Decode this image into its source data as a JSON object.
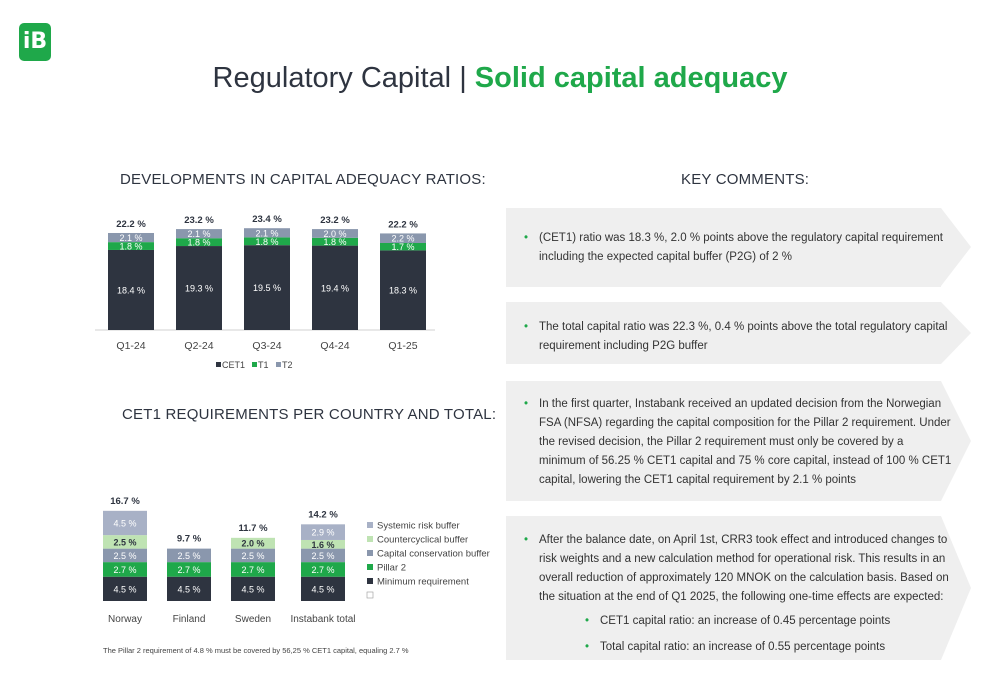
{
  "logo": {
    "text": "iB"
  },
  "title": {
    "part1": "Regulatory Capital",
    "separator": "|",
    "part2": "Solid capital adequacy"
  },
  "sections": {
    "left_top": "DEVELOPMENTS IN CAPITAL ADEQUACY RATIOS:",
    "left_bottom": "CET1 REQUIREMENTS PER COUNTRY AND TOTAL:",
    "right": "KEY COMMENTS:"
  },
  "colors": {
    "cet1": "#2e3440",
    "t1": "#1fa84a",
    "t2": "#8a97ad",
    "systemic": "#a8b1c6",
    "countercyclical": "#bfe3b3",
    "conservation": "#8a97ad",
    "pillar2": "#1fa84a",
    "minimum": "#2e3440",
    "accent": "#1fa84a"
  },
  "chart_data": [
    {
      "type": "bar",
      "stacked": true,
      "categories": [
        "Q1-24",
        "Q2-24",
        "Q3-24",
        "Q4-24",
        "Q1-25"
      ],
      "series": [
        {
          "name": "CET1",
          "values": [
            18.4,
            19.3,
            19.5,
            19.4,
            18.3
          ],
          "labels": [
            "18.4 %",
            "19.3 %",
            "19.5 %",
            "19.4 %",
            "18.3 %"
          ]
        },
        {
          "name": "T1",
          "values": [
            1.8,
            1.8,
            1.8,
            1.8,
            1.7
          ],
          "labels": [
            "1.8 %",
            "1.8 %",
            "1.8 %",
            "1.8 %",
            "1.7 %"
          ]
        },
        {
          "name": "T2",
          "values": [
            2.1,
            2.1,
            2.1,
            2.0,
            2.2
          ],
          "labels": [
            "2.1 %",
            "2.1 %",
            "2.1 %",
            "2.0 %",
            "2.2 %"
          ]
        }
      ],
      "totals": [
        "22.2 %",
        "23.2 %",
        "23.4 %",
        "23.2 %",
        "22.2 %"
      ],
      "legend": {
        "position": "bottom",
        "entries": [
          "CET1",
          "T1",
          "T2"
        ]
      },
      "grid": false
    },
    {
      "type": "bar",
      "stacked": true,
      "categories": [
        "Norway",
        "Finland",
        "Sweden",
        "Instabank total"
      ],
      "series": [
        {
          "name": "Minimum requirement",
          "values": [
            4.5,
            4.5,
            4.5,
            4.5
          ],
          "labels": [
            "4.5 %",
            "4.5 %",
            "4.5 %",
            "4.5 %"
          ]
        },
        {
          "name": "Pillar 2",
          "values": [
            2.7,
            2.7,
            2.7,
            2.7
          ],
          "labels": [
            "2.7 %",
            "2.7 %",
            "2.7 %",
            "2.7 %"
          ]
        },
        {
          "name": "Capital conservation buffer",
          "values": [
            2.5,
            2.5,
            2.5,
            2.5
          ],
          "labels": [
            "2.5 %",
            "2.5 %",
            "2.5 %",
            "2.5 %"
          ]
        },
        {
          "name": "Countercyclical buffer",
          "values": [
            2.5,
            0,
            2.0,
            1.6
          ],
          "labels": [
            "2.5 %",
            "",
            "2.0 %",
            "1.6 %"
          ]
        },
        {
          "name": "Systemic risk buffer",
          "values": [
            4.5,
            0,
            0,
            2.9
          ],
          "labels": [
            "4.5 %",
            "",
            "",
            "2.9 %"
          ]
        }
      ],
      "totals": [
        "16.7 %",
        "9.7 %",
        "11.7 %",
        "14.2 %"
      ],
      "legend": {
        "position": "right",
        "entries": [
          "Systemic risk buffer",
          "Countercyclical buffer",
          "Capital conservation buffer",
          "Pillar 2",
          "Minimum requirement",
          ""
        ]
      },
      "grid": false
    }
  ],
  "note": "The Pillar 2 requirement of 4.8 % must  be covered by 56,25 % CET1 capital, equaling 2.7 %",
  "comments": [
    {
      "lines": [
        "(CET1) ratio was 18.3 %, 2.0 % points above the regulatory capital requirement",
        "including the expected capital buffer (P2G) of 2 %"
      ]
    },
    {
      "lines": [
        "The total capital ratio was 22.3 %, 0.4 % points above the total regulatory capital",
        "requirement including P2G buffer"
      ]
    },
    {
      "lines": [
        "In the first quarter, Instabank received an updated decision from the Norwegian",
        "FSA (NFSA) regarding the capital composition for the Pillar 2 requirement. Under",
        "the revised decision, the Pillar 2 requirement must only be covered by a",
        "minimum of 56.25 % CET1 capital and 75 % core capital, instead of 100 % CET1",
        "capital, lowering the CET1 capital requirement by 2.1 % points"
      ]
    },
    {
      "lines": [
        "After the balance date, on April 1st, CRR3 took effect and introduced changes to",
        "risk weights and a new calculation method for operational risk. This results in an",
        "overall reduction of approximately 120 MNOK on the calculation basis. Based on",
        "the situation at the end of Q1 2025, the following one-time effects are expected:"
      ],
      "sub": [
        "CET1 capital ratio: an increase of 0.45 percentage points",
        "Total capital ratio: an increase of 0.55 percentage points"
      ]
    }
  ]
}
